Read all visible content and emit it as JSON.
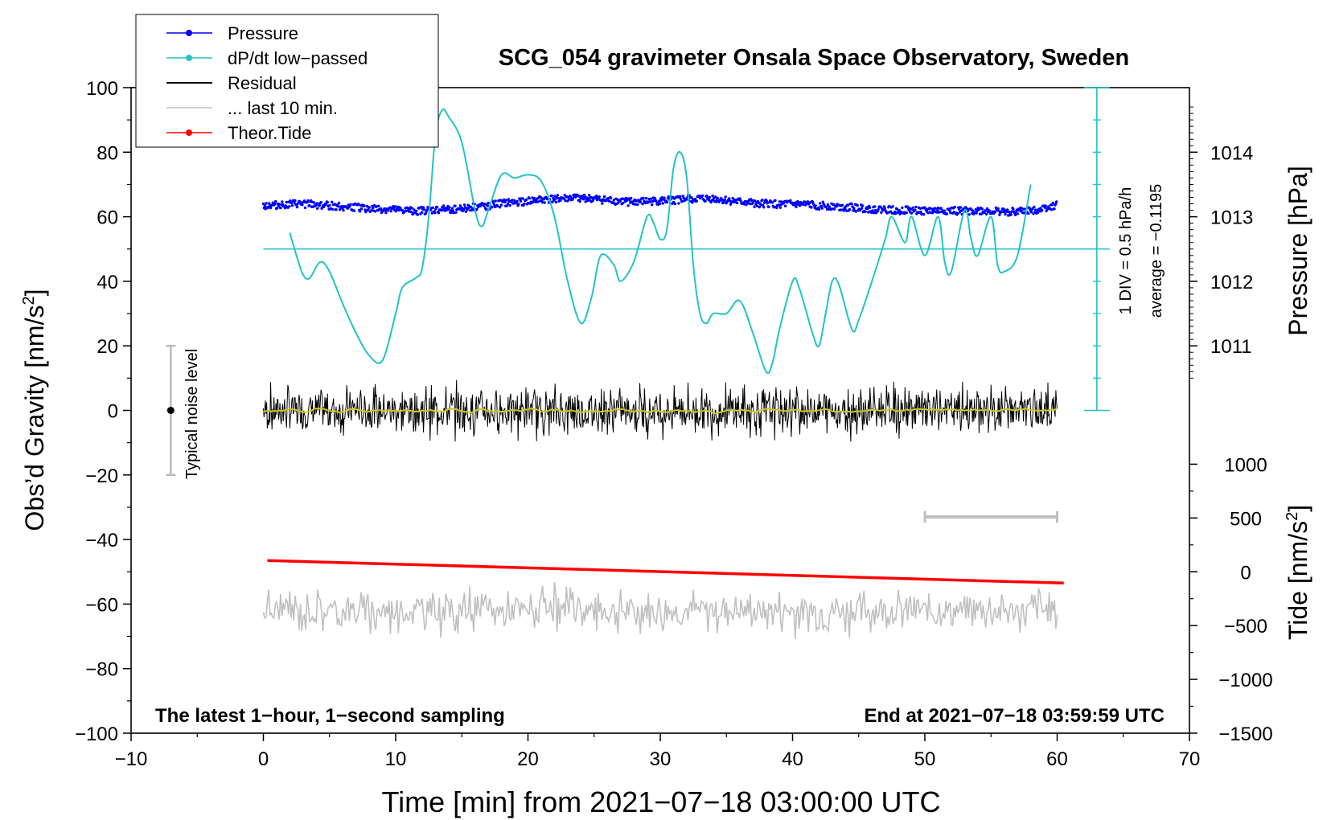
{
  "chart_data": {
    "type": "line",
    "title": "SCG_054 gravimeter Onsala Space Observatory, Sweden",
    "xlabel": "Time [min] from 2021−07−18 03:00:00 UTC",
    "ylabel_left": "Obs’d Gravity [nm/s²]",
    "ylabel_left_main": "Obs’d Gravity [nm/s",
    "ylabel_left_sup": "2",
    "ylabel_left_end": "]",
    "ylabel_right_pressure": "Pressure [hPa]",
    "ylabel_right_tide_main": "Tide [nm/s",
    "ylabel_right_tide_sup": "2",
    "ylabel_right_tide_end": "]",
    "xlim": [
      -10,
      70
    ],
    "ylim": [
      -100,
      100
    ],
    "x_ticks": [
      "−10",
      "0",
      "10",
      "20",
      "30",
      "40",
      "50",
      "60",
      "70"
    ],
    "x_tick_values": [
      -10,
      0,
      10,
      20,
      30,
      40,
      50,
      60,
      70
    ],
    "y_ticks": [
      "100",
      "80",
      "60",
      "40",
      "20",
      "0",
      "−20",
      "−40",
      "−60",
      "−80",
      "−100"
    ],
    "y_tick_values": [
      100,
      80,
      60,
      40,
      20,
      0,
      -20,
      -40,
      -60,
      -80,
      -100
    ],
    "pressure_axis": {
      "ticks": [
        "1014",
        "1013",
        "1012",
        "1011"
      ],
      "tick_values": [
        1014,
        1013,
        1012,
        1011
      ],
      "gravity_at_1011": 20,
      "gravity_per_hpa": 20
    },
    "tide_axis": {
      "ticks": [
        "1000",
        "500",
        "0",
        "−500",
        "−1000",
        "−1500"
      ],
      "tick_values": [
        1000,
        500,
        0,
        -500,
        -1000,
        -1500
      ],
      "gravity_at_0": -50,
      "gravity_per_unit": 0.03333
    },
    "legend": {
      "position": "top-left",
      "entries": [
        {
          "label": "Pressure",
          "color": "#0000ff",
          "marker": "dot"
        },
        {
          "label": "dP/dt low−passed",
          "color": "#22c3c8",
          "marker": "dot"
        },
        {
          "label": "Residual",
          "color": "#000000",
          "marker": "none"
        },
        {
          "label": "... last 10 min.",
          "color": "#c0c0c0",
          "marker": "none"
        },
        {
          "label": "Theor.Tide",
          "color": "#ff0000",
          "marker": "dot"
        }
      ]
    },
    "annotations": {
      "bottom_left": "The latest 1−hour, 1−second sampling",
      "bottom_right": "End at 2021−07−18 03:59:59 UTC",
      "noise": "Typical noise level",
      "noise_range": [
        -20,
        20
      ],
      "noise_x": -7,
      "div_label": "1 DIV = 0.5 hPa/h",
      "average_label": "average = −0.1195",
      "dpdt_scale_x": 63,
      "dpdt_scale_range": [
        0,
        100
      ],
      "dpdt_baseline": 50,
      "last10_bar": {
        "x_start": 50,
        "x_end": 60,
        "y": -33
      }
    },
    "series": [
      {
        "name": "Pressure",
        "color": "#0000ff",
        "x": [
          0,
          3,
          5,
          8,
          10,
          12,
          14,
          16,
          18,
          20,
          22,
          24,
          26,
          28,
          30,
          32,
          34,
          36,
          38,
          40,
          42,
          44,
          46,
          48,
          50,
          52,
          54,
          56,
          58,
          60
        ],
        "values": [
          63.5,
          64,
          63.5,
          62.5,
          62,
          61.8,
          62.3,
          63,
          64,
          64.8,
          65.5,
          65.8,
          65,
          64.5,
          64.8,
          65.5,
          65.5,
          64.5,
          64,
          63.8,
          63.5,
          63,
          62.3,
          62,
          61.8,
          61.8,
          61.8,
          61.5,
          61.8,
          63.5
        ]
      },
      {
        "name": "dP/dt low−passed",
        "color": "#22c3c8",
        "x": [
          2,
          2.5,
          3,
          3.5,
          4.3,
          5,
          6,
          7,
          8,
          9,
          10,
          10.5,
          11.5,
          12,
          12.5,
          13,
          13.5,
          14,
          15,
          16,
          16.5,
          17,
          18,
          19,
          20,
          21,
          22,
          23,
          24,
          24.8,
          25.5,
          26.5,
          27,
          28,
          29,
          29.5,
          30,
          30.5,
          31,
          31.5,
          32,
          32.5,
          33,
          33.5,
          34,
          35,
          36,
          37,
          38,
          38.5,
          39,
          40,
          40.5,
          41.5,
          42,
          42.5,
          43,
          43.5,
          44.5,
          45,
          46,
          47,
          47.5,
          48.5,
          49,
          50,
          51,
          51.5,
          52,
          53,
          53.5,
          54,
          55,
          55.5,
          56,
          57,
          58
        ],
        "values": [
          55,
          48,
          42,
          41,
          46,
          43,
          33,
          24,
          17,
          15.5,
          30,
          38,
          41,
          44,
          60,
          85,
          93,
          91,
          83,
          62,
          57,
          62,
          73,
          72,
          73,
          71,
          60,
          40,
          27,
          35,
          48,
          45,
          40,
          46,
          60,
          58,
          53,
          56,
          75,
          80,
          72,
          45,
          30,
          27,
          30,
          30,
          34,
          24,
          12,
          15,
          25,
          40,
          38,
          24,
          20,
          30,
          40,
          39,
          25,
          28,
          40,
          53,
          60,
          52,
          60,
          48,
          60,
          46,
          43,
          62,
          53,
          48,
          60,
          45,
          43,
          48,
          70
        ]
      },
      {
        "name": "Theor.Tide",
        "color": "#ff0000",
        "x": [
          0.3,
          60.5
        ],
        "values": [
          -46.5,
          -53.5
        ]
      }
    ]
  }
}
